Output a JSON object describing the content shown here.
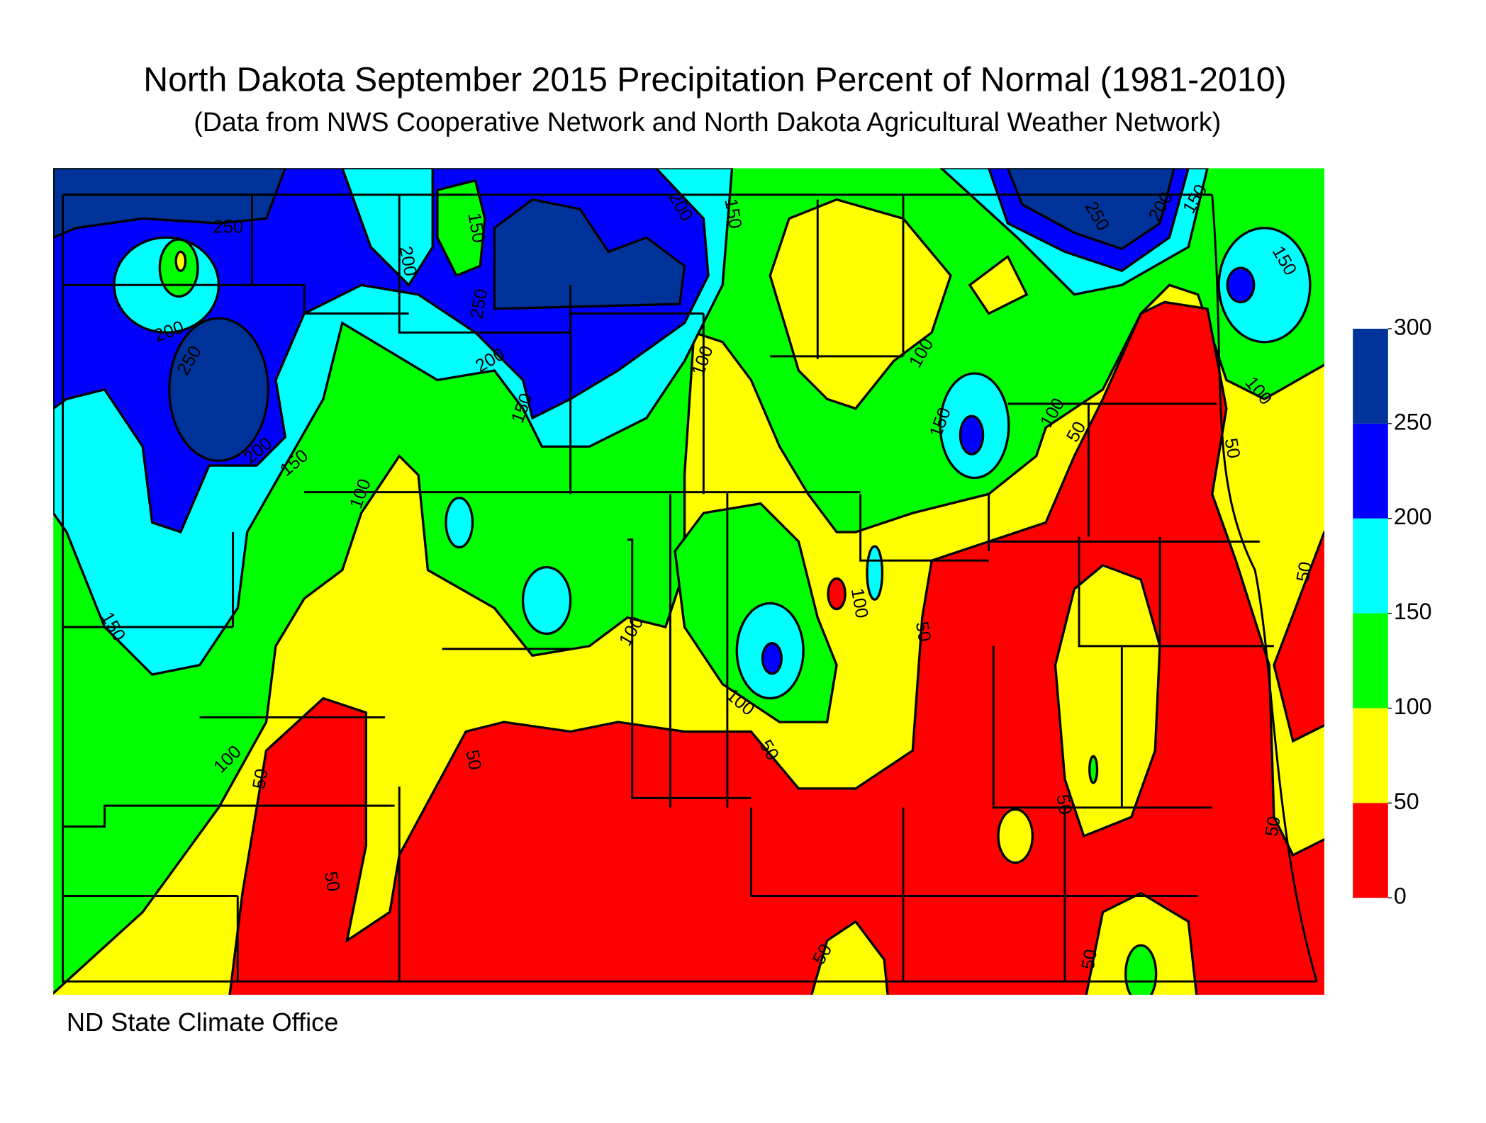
{
  "title": "North Dakota September 2015 Precipitation Percent of Normal (1981-2010)",
  "subtitle": "(Data from NWS Cooperative Network and North Dakota Agricultural Weather Network)",
  "credit": "ND State Climate Office",
  "legend": {
    "levels": [
      0,
      50,
      100,
      150,
      200,
      250,
      300
    ],
    "colors": [
      "#ff0000",
      "#ffff00",
      "#00ff00",
      "#00ffff",
      "#0000ff",
      "#00339a"
    ]
  },
  "contour_labels": [
    250,
    200,
    250,
    200,
    150,
    150,
    100,
    100,
    50,
    50,
    50,
    250,
    200,
    150,
    150,
    200,
    200,
    150,
    100,
    100,
    100,
    50,
    100,
    50,
    100,
    150,
    100,
    50,
    250,
    200,
    150,
    150,
    100,
    50,
    50,
    50,
    50,
    50,
    50
  ]
}
